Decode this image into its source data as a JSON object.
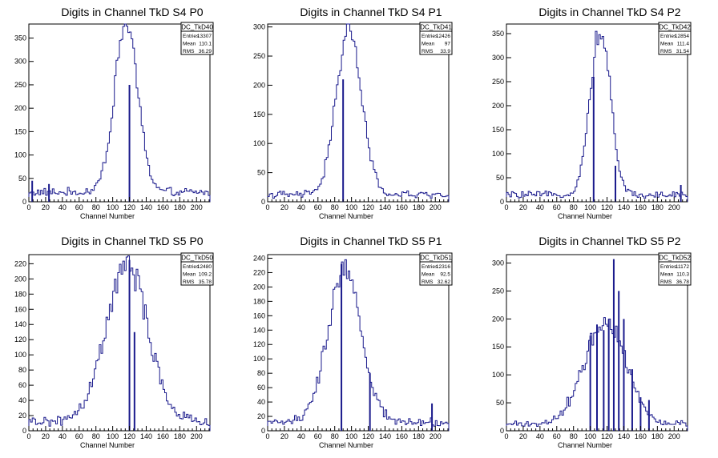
{
  "chart_data": [
    {
      "type": "histogram",
      "title": "Digits in Channel TkD S4 P0",
      "xlabel": "Channel Number",
      "xlim": [
        0,
        216
      ],
      "ylim": [
        0,
        380
      ],
      "xticks": [
        0,
        20,
        40,
        60,
        80,
        100,
        120,
        140,
        160,
        180,
        200
      ],
      "yticks": [
        50,
        100,
        150,
        200,
        250,
        300,
        350
      ],
      "stats": {
        "name": "DC_TkD40",
        "rows": [
          {
            "label": "Entries",
            "value": "13307"
          },
          {
            "label": "Mean",
            "value": "110.1"
          },
          {
            "label": "RMS",
            "value": "36.29"
          }
        ]
      },
      "profile": {
        "center": 116,
        "sigma": 14,
        "peak": 360,
        "tail": 25
      },
      "spikes": [
        [
          4,
          45
        ],
        [
          24,
          38
        ],
        [
          120,
          250
        ]
      ]
    },
    {
      "type": "histogram",
      "title": "Digits in Channel TkD S4 P1",
      "xlabel": "Channel Number",
      "xlim": [
        0,
        216
      ],
      "ylim": [
        0,
        305
      ],
      "xticks": [
        0,
        20,
        40,
        60,
        80,
        100,
        120,
        140,
        160,
        180,
        200
      ],
      "yticks": [
        50,
        100,
        150,
        200,
        250,
        300
      ],
      "stats": {
        "name": "DC_TkD41",
        "rows": [
          {
            "label": "Entries",
            "value": "12426"
          },
          {
            "label": "Mean",
            "value": "97"
          },
          {
            "label": "RMS",
            "value": "33.9"
          }
        ]
      },
      "profile": {
        "center": 97,
        "sigma": 15,
        "peak": 285,
        "tail": 15
      },
      "spikes": [
        [
          90,
          210
        ]
      ]
    },
    {
      "type": "histogram",
      "title": "Digits in Channel TkD S4 P2",
      "xlabel": "Channel Number",
      "xlim": [
        0,
        216
      ],
      "ylim": [
        0,
        370
      ],
      "xticks": [
        0,
        20,
        40,
        60,
        80,
        100,
        120,
        140,
        160,
        180,
        200
      ],
      "yticks": [
        50,
        100,
        150,
        200,
        250,
        300,
        350
      ],
      "stats": {
        "name": "DC_TkD42",
        "rows": [
          {
            "label": "Entries",
            "value": "12854"
          },
          {
            "label": "Mean",
            "value": "111.4"
          },
          {
            "label": "RMS",
            "value": "31.54"
          }
        ]
      },
      "profile": {
        "center": 112,
        "sigma": 12,
        "peak": 345,
        "tail": 18
      },
      "spikes": [
        [
          104,
          260
        ],
        [
          130,
          75
        ],
        [
          208,
          35
        ]
      ]
    },
    {
      "type": "histogram",
      "title": "Digits in Channel TkD S5 P0",
      "xlabel": "Channel Number",
      "xlim": [
        0,
        216
      ],
      "ylim": [
        0,
        232
      ],
      "xticks": [
        0,
        20,
        40,
        60,
        80,
        100,
        120,
        140,
        160,
        180,
        200
      ],
      "yticks": [
        20,
        40,
        60,
        80,
        100,
        120,
        140,
        160,
        180,
        200,
        220
      ],
      "stats": {
        "name": "DC_TkD50",
        "rows": [
          {
            "label": "Entries",
            "value": "12480"
          },
          {
            "label": "Mean",
            "value": "109.2"
          },
          {
            "label": "RMS",
            "value": "35.78"
          }
        ]
      },
      "profile": {
        "center": 117,
        "sigma": 25,
        "peak": 205,
        "tail": 15
      },
      "spikes": [
        [
          120,
          225
        ],
        [
          126,
          130
        ]
      ]
    },
    {
      "type": "histogram",
      "title": "Digits in Channel TkD S5 P1",
      "xlabel": "Channel Number",
      "xlim": [
        0,
        216
      ],
      "ylim": [
        0,
        245
      ],
      "xticks": [
        0,
        20,
        40,
        60,
        80,
        100,
        120,
        140,
        160,
        180,
        200
      ],
      "yticks": [
        20,
        40,
        60,
        80,
        100,
        120,
        140,
        160,
        180,
        200,
        220,
        240
      ],
      "stats": {
        "name": "DC_TkD51",
        "rows": [
          {
            "label": "Entries",
            "value": "12316"
          },
          {
            "label": "Mean",
            "value": "92.5"
          },
          {
            "label": "RMS",
            "value": "32.62"
          }
        ]
      },
      "profile": {
        "center": 92,
        "sigma": 20,
        "peak": 210,
        "tail": 15
      },
      "spikes": [
        [
          88,
          232
        ],
        [
          122,
          80
        ],
        [
          196,
          38
        ]
      ]
    },
    {
      "type": "histogram",
      "title": "Digits in Channel TkD S5 P2",
      "xlabel": "Channel Number",
      "xlim": [
        0,
        216
      ],
      "ylim": [
        0,
        315
      ],
      "xticks": [
        0,
        20,
        40,
        60,
        80,
        100,
        120,
        140,
        160,
        180,
        200
      ],
      "yticks": [
        50,
        100,
        150,
        200,
        250,
        300
      ],
      "stats": {
        "name": "DC_TkD52",
        "rows": [
          {
            "label": "Entries",
            "value": "11172"
          },
          {
            "label": "Mean",
            "value": "110.3"
          },
          {
            "label": "RMS",
            "value": "36.78"
          }
        ]
      },
      "profile": {
        "center": 118,
        "sigma": 25,
        "peak": 185,
        "tail": 15
      },
      "spikes": [
        [
          100,
          170
        ],
        [
          108,
          190
        ],
        [
          116,
          180
        ],
        [
          122,
          200
        ],
        [
          128,
          307
        ],
        [
          134,
          250
        ],
        [
          140,
          200
        ],
        [
          150,
          110
        ],
        [
          160,
          60
        ],
        [
          170,
          55
        ]
      ]
    }
  ],
  "colors": {
    "line": "#1a1a8c",
    "axis": "#000000",
    "background": "#ffffff"
  }
}
